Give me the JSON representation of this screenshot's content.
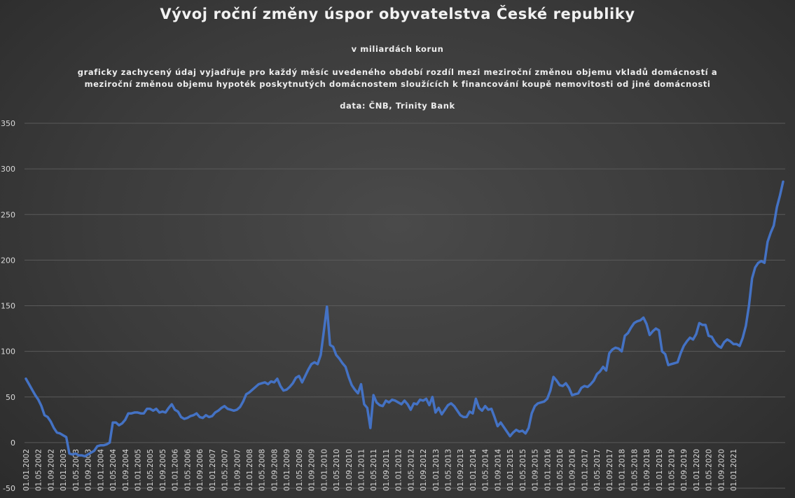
{
  "chart_data": {
    "type": "line",
    "title": "Vývoj roční změny úspor obyvatelstva České republiky",
    "subtitle": "v miliardách korun",
    "description": [
      "graficky zachycený údaj vyjadřuje pro každý měsíc uvedeného období rozdíl mezi meziroční změnou objemu vkladů domácností a",
      "meziroční změnou objemu hypoték poskytnutých domácnostem sloužících k financování koupě nemovitosti od jiné domácnosti"
    ],
    "source": "data: ČNB, Trinity Bank",
    "ylim": [
      -50,
      350
    ],
    "yticks": [
      350,
      300,
      250,
      200,
      150,
      100,
      50,
      0,
      -50
    ],
    "grid": true,
    "line_color": "#4472c4",
    "xtick_labels": [
      "01.01.2002",
      "01.05.2002",
      "01.09.2002",
      "01.01.2003",
      "01.05.2003",
      "01.09.2003",
      "01.01.2004",
      "01.05.2004",
      "01.09.2004",
      "01.01.2005",
      "01.05.2005",
      "01.09.2005",
      "01.01.2006",
      "01.05.2006",
      "01.09.2006",
      "01.01.2007",
      "01.05.2007",
      "01.09.2007",
      "01.01.2008",
      "01.05.2008",
      "01.09.2008",
      "01.01.2009",
      "01.05.2009",
      "01.09.2009",
      "01.01.2010",
      "01.05.2010",
      "01.09.2010",
      "01.01.2011",
      "01.05.2011",
      "01.09.2011",
      "01.01.2012",
      "01.05.2012",
      "01.09.2012",
      "01.01.2013",
      "01.05.2013",
      "01.09.2013",
      "01.01.2014",
      "01.05.2014",
      "01.09.2014",
      "01.01.2015",
      "01.05.2015",
      "01.09.2015",
      "01.01.2016",
      "01.05.2016",
      "01.09.2016",
      "01.01.2017",
      "01.05.2017",
      "01.09.2017",
      "01.01.2018",
      "01.05.2018",
      "01.09.2018",
      "01.01.2019",
      "01.05.2019",
      "01.09.2019",
      "01.01.2020",
      "01.05.2020",
      "01.09.2020",
      "01.01.2021"
    ],
    "series": [
      {
        "values": [
          70,
          64,
          58,
          52,
          47,
          40,
          30,
          28,
          23,
          16,
          11,
          10,
          8,
          6,
          -12,
          -13,
          -12,
          -14,
          -14,
          -15,
          -13,
          -11,
          -9,
          -4,
          -3,
          -3,
          -2,
          0,
          22,
          22,
          19,
          21,
          25,
          32,
          32,
          33,
          33,
          32,
          32,
          37,
          37,
          35,
          37,
          33,
          34,
          33,
          38,
          42,
          36,
          34,
          28,
          26,
          27,
          29,
          30,
          32,
          28,
          27,
          30,
          28,
          29,
          33,
          35,
          38,
          40,
          37,
          36,
          35,
          36,
          39,
          45,
          53,
          55,
          58,
          61,
          64,
          65,
          66,
          64,
          67,
          66,
          70,
          62,
          57,
          58,
          61,
          65,
          71,
          73,
          66,
          73,
          80,
          86,
          88,
          86,
          96,
          122,
          149,
          107,
          105,
          96,
          92,
          87,
          83,
          72,
          63,
          58,
          54,
          64,
          42,
          38,
          16,
          52,
          44,
          41,
          40,
          46,
          44,
          47,
          46,
          44,
          42,
          46,
          42,
          36,
          43,
          42,
          47,
          46,
          48,
          41,
          50,
          33,
          38,
          31,
          36,
          41,
          43,
          40,
          35,
          30,
          28,
          28,
          34,
          32,
          48,
          38,
          35,
          40,
          36,
          37,
          28,
          18,
          22,
          17,
          12,
          7,
          11,
          14,
          12,
          13,
          10,
          16,
          32,
          40,
          43,
          44,
          45,
          48,
          57,
          72,
          68,
          63,
          62,
          65,
          60,
          52,
          53,
          54,
          60,
          62,
          61,
          64,
          68,
          75,
          78,
          83,
          79,
          98,
          102,
          104,
          103,
          100,
          117,
          120,
          126,
          131,
          133,
          134,
          137,
          130,
          118,
          122,
          125,
          123,
          100,
          97,
          85,
          86,
          87,
          88,
          98,
          106,
          111,
          115,
          113,
          119,
          131,
          129,
          129,
          117,
          116,
          110,
          106,
          104,
          110,
          113,
          111,
          108,
          108,
          106,
          115,
          128,
          150,
          180,
          192,
          197,
          199,
          197,
          220,
          230,
          238,
          258,
          271,
          286
        ]
      }
    ]
  }
}
